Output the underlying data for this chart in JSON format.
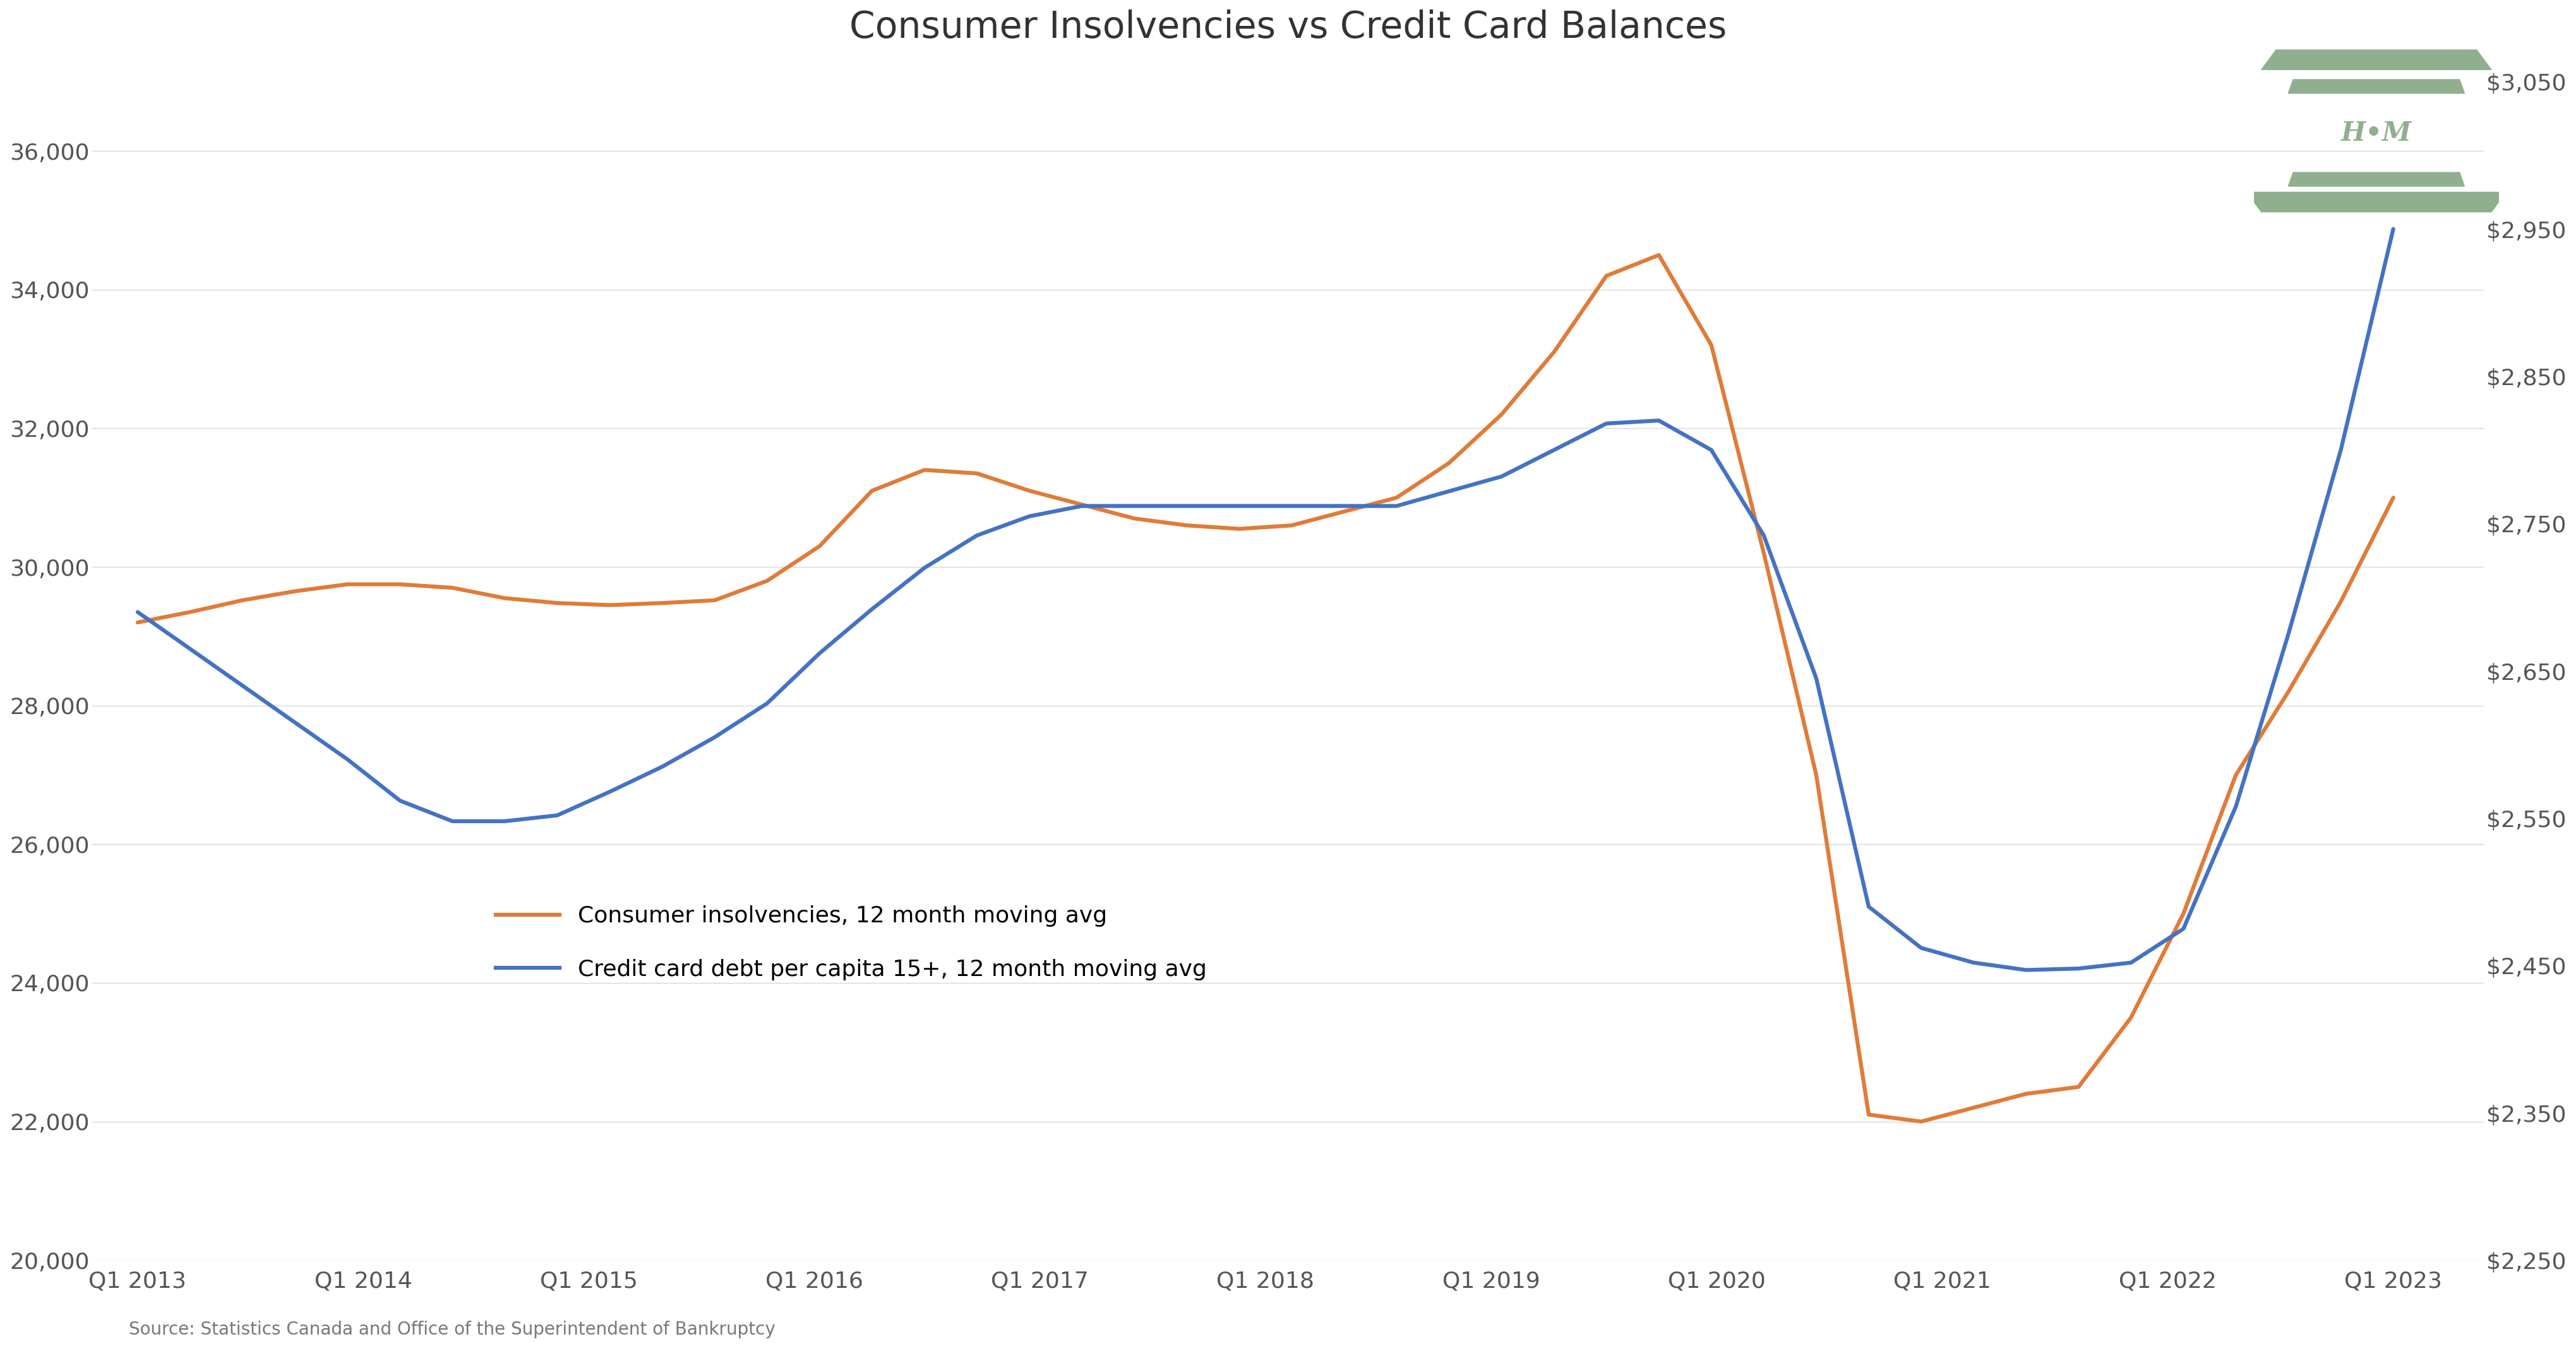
{
  "title": "Consumer Insolvencies vs Credit Card Balances",
  "source_text": "Source: Statistics Canada and Office of the Superintendent of Bankruptcy",
  "background_color": "#ffffff",
  "x_labels": [
    "Q1 2013",
    "Q1 2014",
    "Q1 2015",
    "Q1 2016",
    "Q1 2017",
    "Q1 2018",
    "Q1 2019",
    "Q1 2020",
    "Q1 2021",
    "Q1 2022",
    "Q1 2023"
  ],
  "insolvency_color": "#E07B39",
  "credit_color": "#4472C4",
  "insolvency_label": "Consumer insolvencies, 12 month moving avg",
  "credit_label": "Credit card debt per capita 15+, 12 month moving avg",
  "left_ylim": [
    20000,
    37000
  ],
  "right_ylim": [
    2250,
    3050
  ],
  "left_yticks": [
    20000,
    22000,
    24000,
    26000,
    28000,
    30000,
    32000,
    34000,
    36000
  ],
  "right_yticks": [
    2250,
    2350,
    2450,
    2550,
    2650,
    2750,
    2850,
    2950,
    3050
  ],
  "logo_color": "#8FAF8F",
  "grid_color": "#d8d8d8",
  "tick_color": "#555555",
  "insolvency_data": [
    29200,
    29350,
    29520,
    29650,
    29750,
    29750,
    29700,
    29550,
    29480,
    29450,
    29480,
    29520,
    29800,
    30300,
    31100,
    31400,
    31350,
    31100,
    30900,
    30700,
    30600,
    30550,
    30600,
    30800,
    31000,
    31500,
    32200,
    33100,
    34200,
    34500,
    33200,
    30200,
    27000,
    22100,
    22000,
    22200,
    22400,
    22500,
    23500,
    25000,
    27000,
    28200,
    29500,
    31000
  ],
  "credit_data_right": [
    2690,
    2665,
    2640,
    2615,
    2590,
    2562,
    2548,
    2548,
    2552,
    2568,
    2585,
    2605,
    2628,
    2662,
    2692,
    2720,
    2742,
    2755,
    2762,
    2762,
    2762,
    2762,
    2762,
    2762,
    2762,
    2772,
    2782,
    2800,
    2818,
    2820,
    2800,
    2742,
    2645,
    2490,
    2462,
    2452,
    2447,
    2448,
    2452,
    2475,
    2558,
    2675,
    2800,
    2950
  ]
}
